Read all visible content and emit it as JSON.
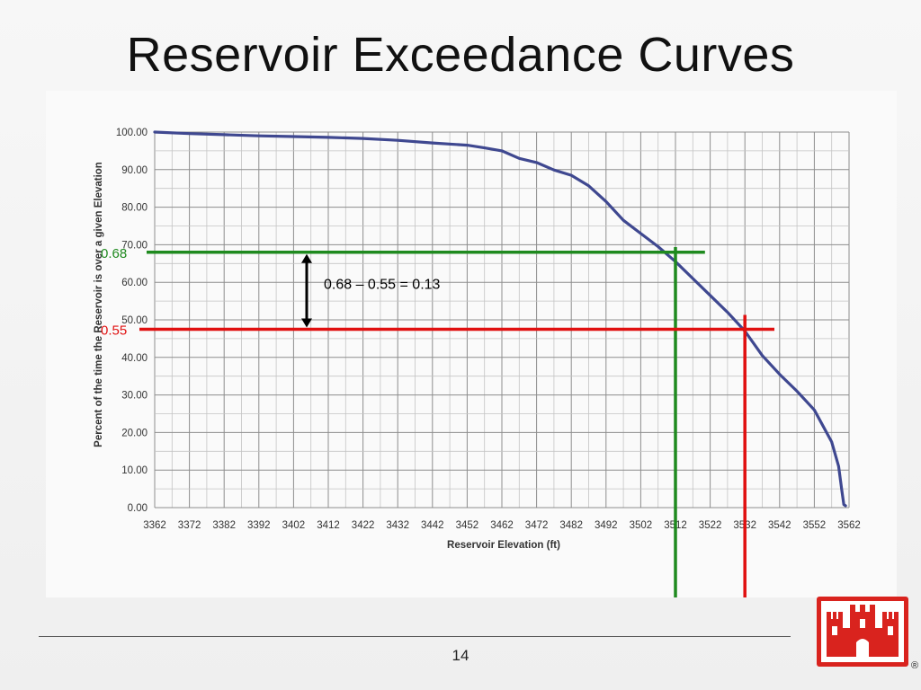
{
  "slide": {
    "title": "Reservoir Exceedance Curves",
    "page_number": "14"
  },
  "chart_data": {
    "type": "line",
    "ylabel": "Percent of the time the Reservoir is over a given Elevation",
    "xlabel": "Reservoir Elevation (ft)",
    "xlim": [
      3362,
      3562
    ],
    "ylim": [
      0,
      100
    ],
    "x_ticks": [
      "3362",
      "3372",
      "3382",
      "3392",
      "3402",
      "3412",
      "3422",
      "3432",
      "3442",
      "3452",
      "3462",
      "3472",
      "3482",
      "3492",
      "3502",
      "3512",
      "3522",
      "3532",
      "3542",
      "3552",
      "3562"
    ],
    "y_ticks": [
      "0.00",
      "10.00",
      "20.00",
      "30.00",
      "40.00",
      "50.00",
      "60.00",
      "70.00",
      "80.00",
      "90.00",
      "100.00"
    ],
    "grid": true,
    "line_color": "#3f4890",
    "series": [
      {
        "x": [
          3362,
          3372,
          3382,
          3392,
          3402,
          3412,
          3422,
          3432,
          3442,
          3452,
          3457,
          3462,
          3467,
          3472,
          3477,
          3482,
          3487,
          3492,
          3497,
          3502,
          3507,
          3512,
          3517,
          3522,
          3527,
          3532,
          3537,
          3542,
          3547,
          3552,
          3557,
          3559,
          3560,
          3560.5,
          3561
        ],
        "y": [
          100,
          99.6,
          99.3,
          99.0,
          98.8,
          98.6,
          98.3,
          97.8,
          97.1,
          96.5,
          95.8,
          95.0,
          93.0,
          91.9,
          89.9,
          88.5,
          85.7,
          81.5,
          76.5,
          73.0,
          69.5,
          65.5,
          61.0,
          56.5,
          52.0,
          47.0,
          40.5,
          35.5,
          31.0,
          26.0,
          17.5,
          11.0,
          4.0,
          0.8,
          0.5
        ]
      }
    ],
    "annotations": {
      "high_label": "0.68",
      "high_color": "#1f8a1f",
      "high_y": 68,
      "high_x": 3512,
      "low_label": "0.55",
      "low_color": "#e01010",
      "low_y": 47.5,
      "low_x": 3532,
      "difference_text": "0.68 – 0.55 = 0.13"
    }
  },
  "logo": {
    "color": "#d9231e",
    "registered": "®"
  }
}
